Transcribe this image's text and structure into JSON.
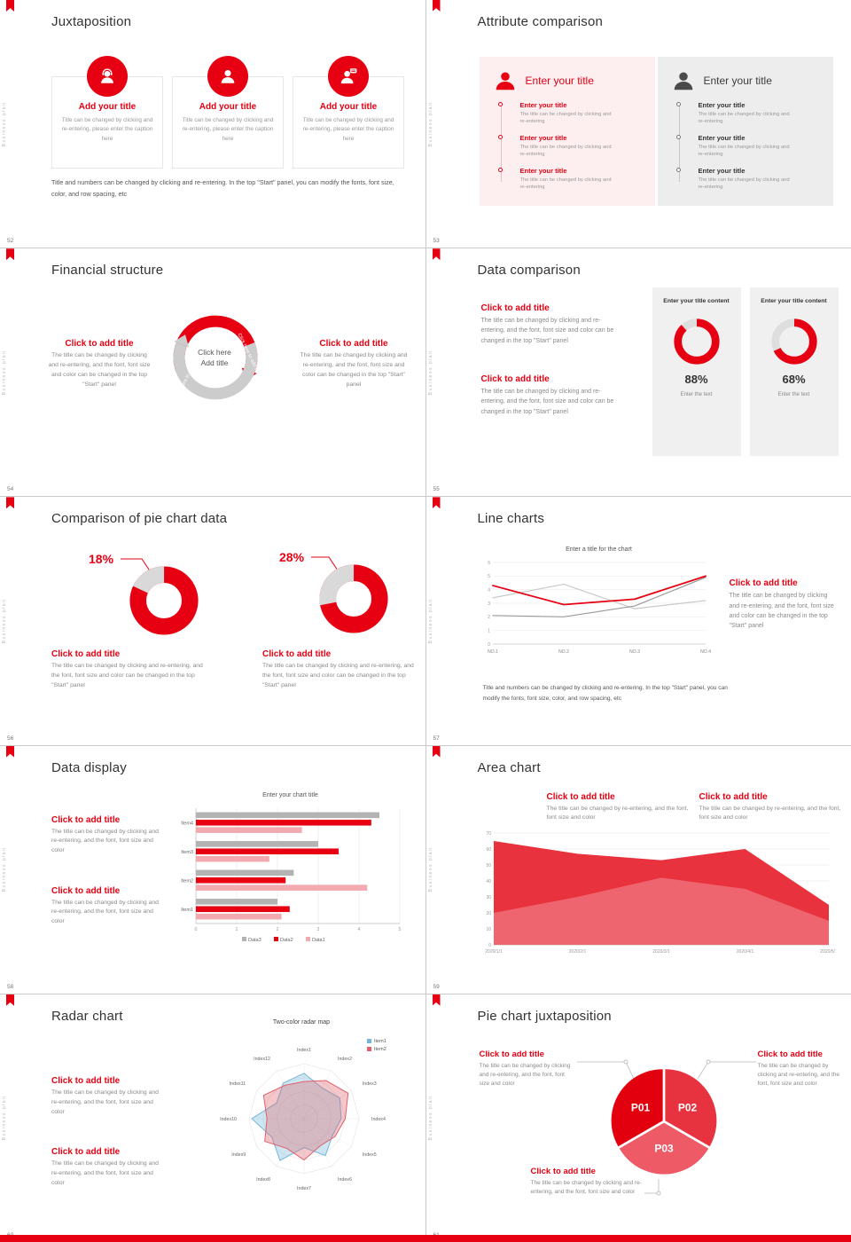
{
  "accent": "#e60012",
  "side_text": "Business plan",
  "slides": {
    "s52": {
      "number": "52",
      "title": "Juxtaposition",
      "cards": [
        {
          "title": "Add your title",
          "caption": "Title can be changed by clicking and re-entering, please enter the caption here"
        },
        {
          "title": "Add your title",
          "caption": "Title can be changed by clicking and re-entering, please enter the caption here"
        },
        {
          "title": "Add your title",
          "caption": "Title can be changed by clicking and re-entering, please enter the caption here"
        }
      ],
      "footer": "Title and numbers can be changed by clicking and re-entering. In the top \"Start\" panel, you can modify the fonts, font size, color, and row spacing, etc"
    },
    "s53": {
      "number": "53",
      "title": "Attribute comparison",
      "left": {
        "title": "Enter your title",
        "items": [
          {
            "title": "Enter your title",
            "desc": "The title can be changed by clicking and re-entering"
          },
          {
            "title": "Enter your title",
            "desc": "The title can be changed by clicking and re-entering"
          },
          {
            "title": "Enter your title",
            "desc": "The title can be changed by clicking and re-entering"
          }
        ]
      },
      "right": {
        "title": "Enter your title",
        "items": [
          {
            "title": "Enter your title",
            "desc": "The title can be changed by clicking and re-entering"
          },
          {
            "title": "Enter your title",
            "desc": "The title can be changed by clicking and re-entering"
          },
          {
            "title": "Enter your title",
            "desc": "The title can be changed by clicking and re-entering"
          }
        ]
      }
    },
    "s54": {
      "number": "54",
      "title": "Financial structure",
      "center1": "Click here",
      "center2": "Add title",
      "arc_label_red": "Click here to add title",
      "arc_label_gray": "Click here to add title",
      "left_block": {
        "t": "Click to add title",
        "d": "The title can be changed by clicking and re-entering, and the font, font size and color can be changed in the top \"Start\" panel"
      },
      "right_block": {
        "t": "Click to add title",
        "d": "The title can be changed by clicking and re-entering, and the font, font size and color can be changed in the top \"Start\" panel"
      }
    },
    "s55": {
      "number": "55",
      "title": "Data comparison",
      "blocks": [
        {
          "t": "Click to add title",
          "d": "The title can be changed by clicking and re-entering, and the font, font size and color can be changed in the top \"Start\" panel"
        },
        {
          "t": "Click to add title",
          "d": "The title can be changed by clicking and re-entering, and the font, font size and color can be changed in the top \"Start\" panel"
        }
      ],
      "cards": [
        {
          "header": "Enter your title content",
          "caption": "Enter the text"
        },
        {
          "header": "Enter your title content",
          "caption": "Enter the text"
        }
      ]
    },
    "s56": {
      "number": "56",
      "title": "Comparison of pie chart data",
      "blocks": [
        {
          "t": "Click to add title",
          "d": "The title can be changed by clicking and re-entering, and the font, font size and color can be changed in the top \"Start\" panel"
        },
        {
          "t": "Click to add title",
          "d": "The title can be changed by clicking and re-entering, and the font, font size and color can be changed in the top \"Start\" panel"
        }
      ]
    },
    "s57": {
      "number": "57",
      "title": "Line charts",
      "block": {
        "t": "Click to add title",
        "d": "The title can be changed by clicking and re-entering, and the font, font size and color can be changed in the top \"Start\" panel"
      },
      "footer": "Title and numbers can be changed by clicking and re-entering. In the top \"Start\" panel, you can modify the fonts, font size, color, and row spacing, etc"
    },
    "s58": {
      "number": "58",
      "title": "Data display",
      "blocks": [
        {
          "t": "Click to add title",
          "d": "The title can be changed by clicking and re-entering, and the font, font size and color"
        },
        {
          "t": "Click to add title",
          "d": "The title can be changed by clicking and re-entering, and the font, font size and color"
        }
      ]
    },
    "s59": {
      "number": "59",
      "title": "Area chart",
      "blocks": [
        {
          "t": "Click to add title",
          "d": "The title can be changed by re-entering, and the font, font size and color"
        },
        {
          "t": "Click to add title",
          "d": "The title can be changed by re-entering, and the font, font size and color"
        }
      ]
    },
    "s60": {
      "number": "60",
      "title": "Radar chart",
      "blocks": [
        {
          "t": "Click to add title",
          "d": "The title can be changed by clicking and re-entering, and the font, font size and color"
        },
        {
          "t": "Click to add title",
          "d": "The title can be changed by clicking and re-entering, and the font, font size and color"
        }
      ]
    },
    "s61": {
      "number": "61",
      "title": "Pie chart juxtaposition",
      "blocks": [
        {
          "t": "Click to add title",
          "d": "The title can be changed by clicking and re-entering, and the font, font size and color"
        },
        {
          "t": "Click to add title",
          "d": "The title can be changed by clicking and re-entering, and the font, font size and color"
        },
        {
          "t": "Click to add title",
          "d": "The title can be changed by clicking and re-entering, and the font, font size and color"
        }
      ]
    }
  },
  "chart_data": [
    {
      "id": "donut-88",
      "type": "pie",
      "percent": 88,
      "label": "88%",
      "color": "#e60012",
      "track": "#dedede"
    },
    {
      "id": "donut-68",
      "type": "pie",
      "percent": 68,
      "label": "68%",
      "color": "#e60012",
      "track": "#dedede"
    },
    {
      "id": "donut-18",
      "type": "pie",
      "percent": 18,
      "label": "18%",
      "color": "#e60012",
      "notch": "#d9d9d9"
    },
    {
      "id": "donut-28",
      "type": "pie",
      "percent": 28,
      "label": "28%",
      "color": "#e60012",
      "notch": "#d9d9d9"
    },
    {
      "id": "line57",
      "type": "line",
      "title": "Enter a title for the chart",
      "x": [
        "NO.1",
        "NO.2",
        "NO.3",
        "NO.4"
      ],
      "ylim": [
        0,
        6
      ],
      "yticks": [
        0,
        1,
        2,
        3,
        4,
        5,
        6
      ],
      "series": [
        {
          "name": "gray-light",
          "color": "#c9c9c9",
          "values": [
            3.4,
            4.4,
            2.6,
            3.2
          ]
        },
        {
          "name": "gray-dark",
          "color": "#9b9b9b",
          "values": [
            2.1,
            2.0,
            2.8,
            4.9
          ]
        },
        {
          "name": "red",
          "color": "#e60012",
          "values": [
            4.3,
            2.9,
            3.3,
            5.0
          ]
        }
      ]
    },
    {
      "id": "bars58",
      "type": "bar",
      "title": "Enter your chart title",
      "categories": [
        "Item1",
        "Item2",
        "Item3",
        "Item4"
      ],
      "xlim": [
        0,
        5
      ],
      "xticks": [
        0,
        1,
        2,
        3,
        4,
        5
      ],
      "series": [
        {
          "name": "Data3",
          "color": "#b3b3b3",
          "values": [
            2.0,
            2.4,
            3.0,
            4.5
          ]
        },
        {
          "name": "Data2",
          "color": "#e60012",
          "values": [
            2.3,
            2.2,
            3.5,
            4.3
          ]
        },
        {
          "name": "Data1",
          "color": "#f2a9af",
          "values": [
            2.1,
            4.2,
            1.8,
            2.6
          ]
        }
      ]
    },
    {
      "id": "area59",
      "type": "area",
      "x": [
        "2020/1/1",
        "2020/2/1",
        "2020/3/1",
        "2020/4/1",
        "2020/5/1"
      ],
      "ylim": [
        0,
        70
      ],
      "yticks": [
        0,
        10,
        20,
        30,
        40,
        50,
        60,
        70
      ],
      "series": [
        {
          "name": "Series1",
          "color": "#e8323e",
          "values": [
            65,
            57,
            53,
            60,
            25
          ]
        },
        {
          "name": "Series2",
          "color": "#f4858e",
          "values": [
            20,
            30,
            42,
            35,
            15
          ]
        }
      ]
    },
    {
      "id": "radar60",
      "type": "radar",
      "title": "Two-color radar map",
      "axes": [
        "Index1",
        "Index2",
        "Index3",
        "Index4",
        "Index5",
        "Index6",
        "Index7",
        "Index8",
        "Index9",
        "Index10",
        "Index11",
        "Index12"
      ],
      "max": 4,
      "series": [
        {
          "name": "Item1",
          "color": "#74b6d8",
          "values": [
            3.3,
            2.6,
            3.0,
            2.7,
            2.4,
            3.1,
            2.1,
            3.5,
            2.7,
            3.8,
            2.3,
            3.0
          ]
        },
        {
          "name": "Item2",
          "color": "#e0606b",
          "values": [
            2.7,
            3.2,
            3.7,
            3.0,
            2.6,
            2.3,
            3.0,
            2.5,
            3.3,
            2.7,
            3.4,
            2.8
          ]
        }
      ]
    },
    {
      "id": "pie61",
      "type": "pie",
      "labels": [
        "P01",
        "P02",
        "P03"
      ],
      "values": [
        33.4,
        33.3,
        33.3
      ],
      "colors": [
        "#e2000f",
        "#e6333f",
        "#ee5a65"
      ]
    }
  ]
}
